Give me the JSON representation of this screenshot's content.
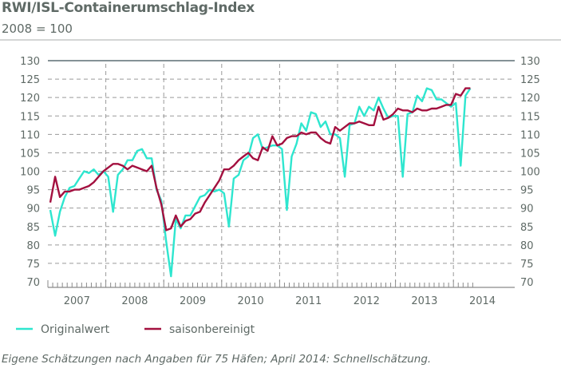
{
  "chart_data": {
    "type": "line",
    "title": "RWI/ISL-Containerumschlag-Index",
    "subtitle": "2008 = 100",
    "xlabel": "",
    "ylabel": "",
    "ylim": [
      70,
      130
    ],
    "yticks": [
      70,
      75,
      80,
      85,
      90,
      95,
      100,
      105,
      110,
      115,
      120,
      125,
      130
    ],
    "x_tick_labels": [
      "2007",
      "2008",
      "2009",
      "2010",
      "2011",
      "2012",
      "2013",
      "2014"
    ],
    "x_frequency": "monthly",
    "x_start": "2007-01",
    "x_end": "2014-04",
    "grid": true,
    "legend_position": "bottom-left",
    "series": [
      {
        "name": "Originalwert",
        "color": "#2ee6cf",
        "values": [
          89.5,
          82.5,
          89,
          93,
          95.5,
          96,
          98,
          100,
          99.5,
          100.5,
          99,
          100,
          98.5,
          89,
          99,
          100.5,
          103,
          103,
          105.5,
          106,
          103.5,
          103.5,
          95,
          92,
          81,
          71.5,
          87,
          84.5,
          88,
          88,
          90.5,
          93,
          93.5,
          95,
          94.5,
          95,
          94,
          85,
          98,
          99,
          103,
          104,
          109,
          110,
          106,
          106.5,
          107,
          107,
          106,
          89.5,
          104,
          107.5,
          113,
          111,
          116,
          115.5,
          112,
          113.5,
          110,
          110,
          109,
          98.5,
          112.5,
          113,
          117.5,
          115,
          117.5,
          116.5,
          120,
          117,
          114.5,
          115,
          115,
          98.5,
          115.5,
          116,
          120.5,
          119,
          122.5,
          122,
          119.5,
          119.5,
          118.5,
          117.5,
          118.5,
          101.5,
          120.5,
          122.5
        ]
      },
      {
        "name": "saisonbereinigt",
        "color": "#a3103f",
        "values": [
          91.5,
          98.5,
          93,
          94.5,
          94.5,
          95,
          95,
          95.5,
          96,
          97,
          98.5,
          100,
          101,
          102,
          102,
          101.5,
          100.5,
          101.5,
          101,
          100.5,
          100,
          101.5,
          95.5,
          91,
          84,
          84.5,
          88,
          85,
          86.5,
          87,
          88.5,
          89,
          91.5,
          93.5,
          95.5,
          97.5,
          100.5,
          100.5,
          101.5,
          103,
          104,
          105,
          103.5,
          103,
          106.5,
          105.5,
          109.5,
          107,
          107.5,
          109,
          109.5,
          109.5,
          110.5,
          110,
          110.5,
          110.5,
          109,
          108,
          107.5,
          112,
          111,
          112,
          113,
          113,
          113.5,
          113,
          112.5,
          112.5,
          117.5,
          114,
          114.5,
          115.5,
          117,
          116.5,
          116.5,
          116,
          117,
          116.5,
          116.5,
          117,
          117,
          117.5,
          118,
          118,
          121,
          120.5,
          122.5,
          122.5
        ]
      }
    ],
    "footnote": "Eigene Schätzungen nach Angaben für 75 Häfen; April 2014: Schnellschätzung."
  }
}
